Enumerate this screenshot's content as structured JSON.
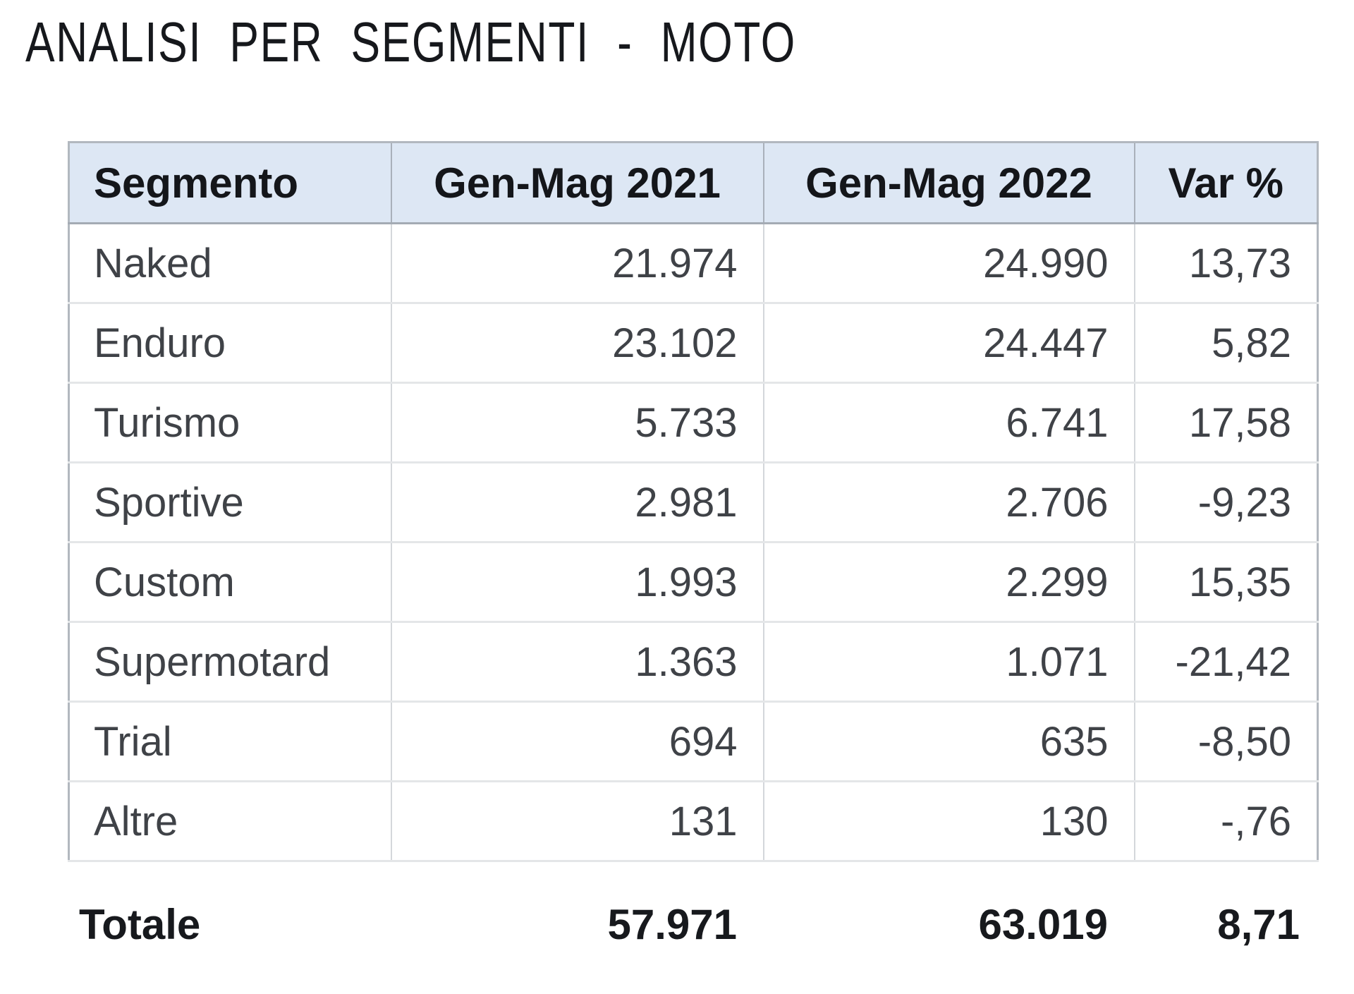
{
  "title": "ANALISI PER SEGMENTI - MOTO",
  "table": {
    "columns": [
      "Segmento",
      "Gen-Mag 2021",
      "Gen-Mag 2022",
      "Var %"
    ],
    "rows": [
      {
        "segmento": "Naked",
        "gen_mag_2021": "21.974",
        "gen_mag_2022": "24.990",
        "var_pct": "13,73"
      },
      {
        "segmento": "Enduro",
        "gen_mag_2021": "23.102",
        "gen_mag_2022": "24.447",
        "var_pct": "5,82"
      },
      {
        "segmento": "Turismo",
        "gen_mag_2021": "5.733",
        "gen_mag_2022": "6.741",
        "var_pct": "17,58"
      },
      {
        "segmento": "Sportive",
        "gen_mag_2021": "2.981",
        "gen_mag_2022": "2.706",
        "var_pct": "-9,23"
      },
      {
        "segmento": "Custom",
        "gen_mag_2021": "1.993",
        "gen_mag_2022": "2.299",
        "var_pct": "15,35"
      },
      {
        "segmento": "Supermotard",
        "gen_mag_2021": "1.363",
        "gen_mag_2022": "1.071",
        "var_pct": "-21,42"
      },
      {
        "segmento": "Trial",
        "gen_mag_2021": "694",
        "gen_mag_2022": "635",
        "var_pct": "-8,50"
      },
      {
        "segmento": "Altre",
        "gen_mag_2021": "131",
        "gen_mag_2022": "130",
        "var_pct": "-,76"
      }
    ],
    "total": {
      "label": "Totale",
      "gen_mag_2021": "57.971",
      "gen_mag_2022": "63.019",
      "var_pct": "8,71"
    }
  },
  "colors": {
    "header_background": "#dde7f4",
    "header_text": "#14161a",
    "body_text": "#3f4247",
    "grid_line": "#d4d7db",
    "outer_border": "#b2b8bf"
  }
}
